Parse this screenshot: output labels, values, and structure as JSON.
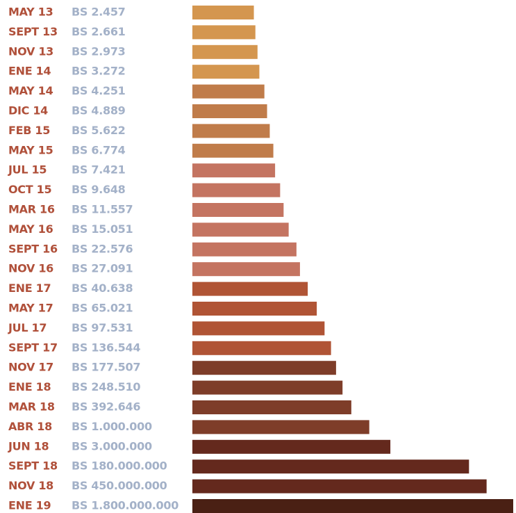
{
  "chart_data": {
    "type": "bar",
    "orientation": "horizontal",
    "log_scale": true,
    "categories": [
      "MAY 13",
      "SEPT 13",
      "NOV 13",
      "ENE 14",
      "MAY 14",
      "DIC 14",
      "FEB 15",
      "MAY 15",
      "JUL 15",
      "OCT 15",
      "MAR 16",
      "MAY 16",
      "SEPT 16",
      "NOV 16",
      "ENE 17",
      "MAY 17",
      "JUL 17",
      "SEPT 17",
      "NOV 17",
      "ENE 18",
      "MAR 18",
      "ABR 18",
      "JUN 18",
      "SEPT 18",
      "NOV 18",
      "ENE 19"
    ],
    "values": [
      2457,
      2661,
      2973,
      3272,
      4251,
      4889,
      5622,
      6774,
      7421,
      9648,
      11557,
      15051,
      22576,
      27091,
      40638,
      65021,
      97531,
      136544,
      177507,
      248510,
      392646,
      1000000,
      3000000,
      180000000,
      450000000,
      1800000000
    ],
    "value_labels": [
      "BS 2.457",
      "BS 2.661",
      "BS 2.973",
      "BS 3.272",
      "BS 4.251",
      "BS 4.889",
      "BS 5.622",
      "BS 6.774",
      "BS 7.421",
      "BS 9.648",
      "BS 11.557",
      "BS 15.051",
      "BS 22.576",
      "BS 27.091",
      "BS 40.638",
      "BS 65.021",
      "BS 97.531",
      "BS 136.544",
      "BS 177.507",
      "BS 248.510",
      "BS 392.646",
      "BS 1.000.000",
      "BS 3.000.000",
      "BS 180.000.000",
      "BS 450.000.000",
      "BS 1.800.000.000"
    ],
    "colors": [
      "#d4964f",
      "#d4964f",
      "#d4964f",
      "#d4964f",
      "#c07c4a",
      "#c07c4a",
      "#c07c4a",
      "#c07c4a",
      "#c47461",
      "#c47461",
      "#c47461",
      "#c47461",
      "#c47461",
      "#c47461",
      "#b05435",
      "#b05435",
      "#b05435",
      "#b05435",
      "#7e3d29",
      "#7e3d29",
      "#7e3d29",
      "#7e3d29",
      "#64291d",
      "#64291d",
      "#64291d",
      "#4a2014"
    ],
    "xlim": [
      100,
      1800000000
    ]
  }
}
